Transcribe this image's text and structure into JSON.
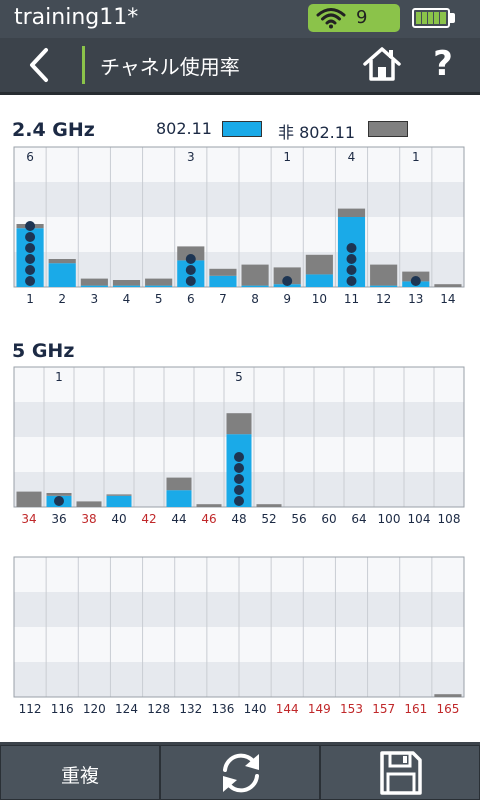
{
  "status_bar": {
    "app_title": "training11*",
    "wifi_count": "9",
    "battery_segments": 5
  },
  "header": {
    "title": "チャネル使用率"
  },
  "colors": {
    "wifi": "#1aaae8",
    "non_wifi": "#808080",
    "dot": "#1d3553",
    "accent_green": "#8bc34a",
    "red_label": "#c0282a"
  },
  "section_24": {
    "title": "2.4 GHz",
    "legend_wifi": "802.11",
    "legend_non_wifi": "非 802.11"
  },
  "section_5": {
    "title": "5 GHz"
  },
  "bottom_bar": {
    "overlap_label": "重複"
  },
  "chart_data": [
    {
      "type": "bar",
      "title": "2.4 GHz",
      "categories": [
        "1",
        "2",
        "3",
        "4",
        "5",
        "6",
        "7",
        "8",
        "9",
        "10",
        "11",
        "12",
        "13",
        "14"
      ],
      "ylim": [
        0,
        100
      ],
      "series": [
        {
          "name": "802.11",
          "values": [
            42,
            17,
            1,
            1,
            1,
            19,
            8,
            1,
            2,
            9,
            50,
            1,
            4,
            0
          ]
        },
        {
          "name": "非 802.11",
          "values": [
            3,
            3,
            5,
            4,
            5,
            10,
            5,
            15,
            12,
            14,
            6,
            15,
            7,
            2
          ]
        }
      ],
      "ap_counts": [
        6,
        0,
        0,
        0,
        0,
        3,
        0,
        0,
        1,
        0,
        4,
        0,
        1,
        0
      ],
      "red_labels": []
    },
    {
      "type": "bar",
      "title": "5 GHz",
      "categories": [
        "34",
        "36",
        "38",
        "40",
        "42",
        "44",
        "46",
        "48",
        "52",
        "56",
        "60",
        "64",
        "100",
        "104",
        "108"
      ],
      "ylim": [
        0,
        100
      ],
      "series": [
        {
          "name": "802.11",
          "values": [
            0,
            8,
            0,
            8,
            0,
            12,
            0,
            52,
            0,
            0,
            0,
            0,
            0,
            0,
            0
          ]
        },
        {
          "name": "非 802.11",
          "values": [
            11,
            2,
            4,
            1,
            0,
            9,
            2,
            15,
            2,
            0,
            0,
            0,
            0,
            0,
            0
          ]
        }
      ],
      "ap_counts": [
        0,
        1,
        0,
        0,
        0,
        0,
        0,
        5,
        0,
        0,
        0,
        0,
        0,
        0,
        0
      ],
      "red_labels": [
        "34",
        "38",
        "42",
        "46"
      ]
    },
    {
      "type": "bar",
      "title": "",
      "categories": [
        "112",
        "116",
        "120",
        "124",
        "128",
        "132",
        "136",
        "140",
        "144",
        "149",
        "153",
        "157",
        "161",
        "165"
      ],
      "ylim": [
        0,
        100
      ],
      "series": [
        {
          "name": "802.11",
          "values": [
            0,
            0,
            0,
            0,
            0,
            0,
            0,
            0,
            0,
            0,
            0,
            0,
            0,
            0
          ]
        },
        {
          "name": "非 802.11",
          "values": [
            0,
            0,
            0,
            0,
            0,
            0,
            0,
            0,
            0,
            0,
            0,
            0,
            0,
            2
          ]
        }
      ],
      "ap_counts": [
        0,
        0,
        0,
        0,
        0,
        0,
        0,
        0,
        0,
        0,
        0,
        0,
        0,
        0
      ],
      "red_labels": [
        "144",
        "149",
        "153",
        "157",
        "161",
        "165"
      ]
    }
  ]
}
